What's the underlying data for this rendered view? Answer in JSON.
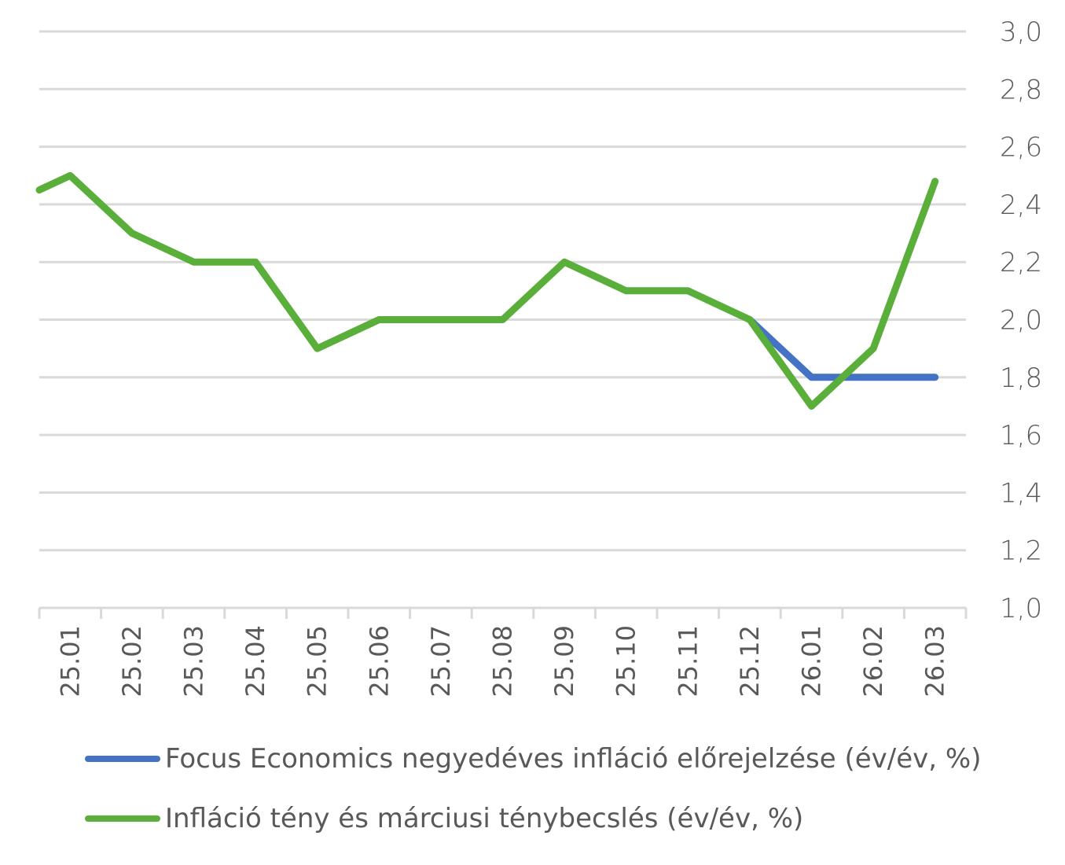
{
  "chart_data": {
    "type": "line",
    "categories": [
      "25.01",
      "25.02",
      "25.03",
      "25.04",
      "25.05",
      "25.06",
      "25.07",
      "25.08",
      "25.09",
      "25.10",
      "25.11",
      "25.12",
      "26.01",
      "26.02",
      "26.03"
    ],
    "y_axis": {
      "min": 1.0,
      "max": 3.0,
      "step": 0.2,
      "position": "right",
      "tick_labels": [
        "1,0",
        "1,2",
        "1,4",
        "1,6",
        "1,8",
        "2,0",
        "2,2",
        "2,4",
        "2,6",
        "2,8",
        "3,0"
      ]
    },
    "grid": true,
    "legend_position": "bottom",
    "series": [
      {
        "name": "Focus Economics negyedéves infláció előrejelzése (év/év, %)",
        "color": "#4472c4",
        "points": [
          {
            "x": 11.5,
            "y": 2.0
          },
          {
            "x": 12.5,
            "y": 1.8
          },
          {
            "x": 13.5,
            "y": 1.8
          },
          {
            "x": 14.5,
            "y": 1.8
          }
        ]
      },
      {
        "name": "Infláció tény és márciusi ténybecslés (év/év, %)",
        "color": "#5aae3a",
        "points": [
          {
            "x": 0.0,
            "y": 2.45
          },
          {
            "x": 0.5,
            "y": 2.5
          },
          {
            "x": 1.5,
            "y": 2.3
          },
          {
            "x": 2.5,
            "y": 2.2
          },
          {
            "x": 3.5,
            "y": 2.2
          },
          {
            "x": 4.5,
            "y": 1.9
          },
          {
            "x": 5.5,
            "y": 2.0
          },
          {
            "x": 6.5,
            "y": 2.0
          },
          {
            "x": 7.5,
            "y": 2.0
          },
          {
            "x": 8.5,
            "y": 2.2
          },
          {
            "x": 9.5,
            "y": 2.1
          },
          {
            "x": 10.5,
            "y": 2.1
          },
          {
            "x": 11.5,
            "y": 2.0
          },
          {
            "x": 12.5,
            "y": 1.7
          },
          {
            "x": 13.5,
            "y": 1.9
          },
          {
            "x": 14.5,
            "y": 2.48
          }
        ]
      }
    ]
  },
  "legend": {
    "item1_label": "Focus Economics negyedéves infláció előrejelzése (év/év, %)",
    "item2_label": "Infláció tény és márciusi ténybecslés (év/év, %)"
  }
}
